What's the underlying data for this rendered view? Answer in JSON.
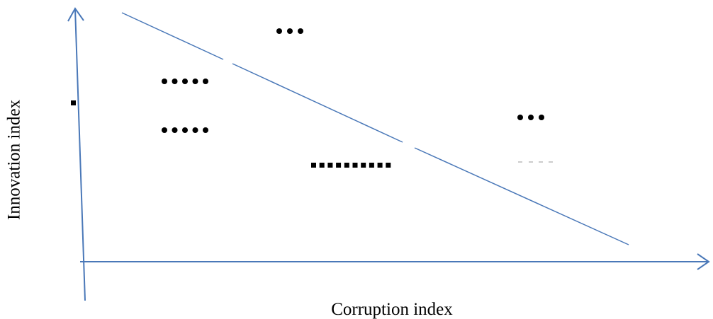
{
  "y_axis_label": "Innovation index",
  "x_axis_label": "Corruption index"
}
